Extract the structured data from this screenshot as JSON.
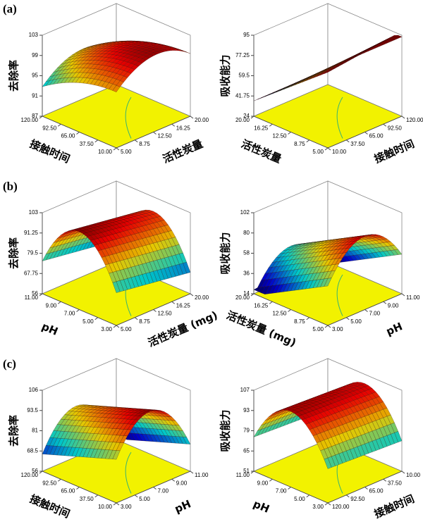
{
  "panel_labels": [
    "(a)",
    "(b)",
    "(c)"
  ],
  "chart_data": [
    {
      "type": "surface3d",
      "z_label": "去除率",
      "zlim": [
        87,
        103
      ],
      "zticks": [
        87,
        91,
        95,
        99,
        103
      ],
      "y_label": "接触时间",
      "ylim": [
        10,
        120
      ],
      "yticks": [
        {
          "value": 10,
          "label": "10.00"
        },
        {
          "value": 37.5,
          "label": "37.50"
        },
        {
          "value": 65,
          "label": "65.00"
        },
        {
          "value": 92.5,
          "label": "92.50"
        },
        {
          "value": 120,
          "label": "120.00"
        }
      ],
      "x_label": "活性炭量",
      "xlim": [
        5,
        20
      ],
      "xticks": [
        {
          "value": 5,
          "label": "5.00"
        },
        {
          "value": 8.75,
          "label": "8.75"
        },
        {
          "value": 12.5,
          "label": "12.50"
        },
        {
          "value": 16.25,
          "label": "16.25"
        },
        {
          "value": 20,
          "label": "20.00"
        }
      ]
    },
    {
      "type": "surface3d",
      "z_label": "吸收能力",
      "zlim": [
        24,
        95
      ],
      "zticks": [
        24,
        41.75,
        59.5,
        77.25,
        95
      ],
      "y_label": "活性炭量",
      "ylim": [
        5,
        20
      ],
      "yticks": [
        {
          "value": 5,
          "label": "5.00"
        },
        {
          "value": 8.75,
          "label": "8.75"
        },
        {
          "value": 12.5,
          "label": "12.50"
        },
        {
          "value": 16.25,
          "label": "16.25"
        },
        {
          "value": 20,
          "label": "20.00"
        }
      ],
      "x_label": "接触时间",
      "xlim": [
        10,
        120
      ],
      "xticks": [
        {
          "value": 10,
          "label": "10.00"
        },
        {
          "value": 37.5,
          "label": "37.50"
        },
        {
          "value": 65,
          "label": "65.00"
        },
        {
          "value": 92.5,
          "label": "92.50"
        },
        {
          "value": 120,
          "label": "120.00"
        }
      ]
    },
    {
      "type": "surface3d",
      "z_label": "去除率",
      "zlim": [
        56,
        103
      ],
      "zticks": [
        56,
        67.75,
        79.5,
        91.25,
        103
      ],
      "y_label": "pH",
      "ylim": [
        3,
        11
      ],
      "yticks": [
        {
          "value": 3,
          "label": "3.00"
        },
        {
          "value": 5,
          "label": "5.00"
        },
        {
          "value": 7,
          "label": "7.00"
        },
        {
          "value": 9,
          "label": "9.00"
        },
        {
          "value": 11,
          "label": "11.00"
        }
      ],
      "x_label": "活性炭量 (mg)",
      "xlim": [
        5,
        20
      ],
      "xticks": [
        {
          "value": 5,
          "label": "5.00"
        },
        {
          "value": 8.75,
          "label": "8.75"
        },
        {
          "value": 12.5,
          "label": "12.50"
        },
        {
          "value": 16.25,
          "label": "16.25"
        },
        {
          "value": 20,
          "label": "20.00"
        }
      ]
    },
    {
      "type": "surface3d",
      "z_label": "吸收能力",
      "zlim": [
        14,
        102
      ],
      "zticks": [
        14,
        36,
        58,
        80,
        102
      ],
      "y_label": "活性炭量 (mg)",
      "ylim": [
        5,
        20
      ],
      "yticks": [
        {
          "value": 5,
          "label": "5.00"
        },
        {
          "value": 8.75,
          "label": "8.75"
        },
        {
          "value": 12.5,
          "label": "12.50"
        },
        {
          "value": 16.25,
          "label": "16.25"
        },
        {
          "value": 20,
          "label": "20.00"
        }
      ],
      "x_label": "pH",
      "xlim": [
        3,
        11
      ],
      "xticks": [
        {
          "value": 3,
          "label": "3.00"
        },
        {
          "value": 5,
          "label": "5.00"
        },
        {
          "value": 7,
          "label": "7.00"
        },
        {
          "value": 9,
          "label": "9.00"
        },
        {
          "value": 11,
          "label": "11.00"
        }
      ]
    },
    {
      "type": "surface3d",
      "z_label": "去除率",
      "zlim": [
        56,
        106
      ],
      "zticks": [
        56,
        68.5,
        81,
        93.5,
        106
      ],
      "y_label": "接触时间",
      "ylim": [
        10,
        120
      ],
      "yticks": [
        {
          "value": 10,
          "label": "10.00"
        },
        {
          "value": 37.5,
          "label": "37.50"
        },
        {
          "value": 65,
          "label": "65.00"
        },
        {
          "value": 92.5,
          "label": "92.50"
        },
        {
          "value": 120,
          "label": "120.00"
        }
      ],
      "x_label": "pH",
      "xlim": [
        3,
        11
      ],
      "xticks": [
        {
          "value": 3,
          "label": "3.00"
        },
        {
          "value": 5,
          "label": "5.00"
        },
        {
          "value": 7,
          "label": "7.00"
        },
        {
          "value": 9,
          "label": "9.00"
        },
        {
          "value": 11,
          "label": "11.00"
        }
      ]
    },
    {
      "type": "surface3d",
      "z_label": "吸收能力",
      "zlim": [
        51,
        107
      ],
      "zticks": [
        51,
        65,
        79,
        93,
        107
      ],
      "y_label": "pH",
      "ylim": [
        3,
        11
      ],
      "yticks": [
        {
          "value": 3,
          "label": "3.00"
        },
        {
          "value": 5,
          "label": "5.00"
        },
        {
          "value": 7,
          "label": "7.00"
        },
        {
          "value": 9,
          "label": "9.00"
        },
        {
          "value": 11,
          "label": "11.00"
        }
      ],
      "x_label": "接触时间",
      "xlim": [
        120,
        10
      ],
      "xticks": [
        {
          "value": 120,
          "label": "120.00"
        },
        {
          "value": 92.5,
          "label": "92.50"
        },
        {
          "value": 65,
          "label": "65.00"
        },
        {
          "value": 37.5,
          "label": "37.50"
        },
        {
          "value": 10,
          "label": "10.00"
        }
      ]
    }
  ]
}
